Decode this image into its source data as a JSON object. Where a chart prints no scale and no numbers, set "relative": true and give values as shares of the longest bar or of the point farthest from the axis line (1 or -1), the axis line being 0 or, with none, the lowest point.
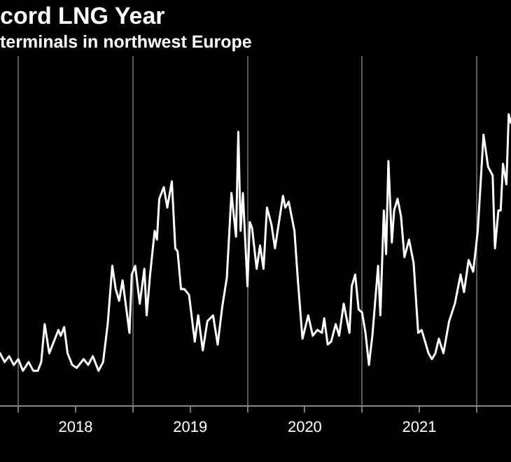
{
  "chart_data": {
    "type": "line",
    "title": "cord LNG Year",
    "subtitle": "terminals in northwest Europe",
    "relative": true,
    "grid": "x",
    "xlim": [
      2017.84,
      2022.3
    ],
    "xticks": [
      {
        "value": 2018,
        "label": null
      },
      {
        "value": 2018.5,
        "label": "2018"
      },
      {
        "value": 2019,
        "label": null
      },
      {
        "value": 2019.5,
        "label": "2019"
      },
      {
        "value": 2020,
        "label": null
      },
      {
        "value": 2020.5,
        "label": "2020"
      },
      {
        "value": 2021,
        "label": null
      },
      {
        "value": 2021.5,
        "label": "2021"
      },
      {
        "value": 2022,
        "label": null
      }
    ],
    "series": [
      {
        "color": "#ffffff",
        "x": [
          2017.84,
          2017.88,
          2017.92,
          2017.96,
          2018.0,
          2018.04,
          2018.09,
          2018.13,
          2018.17,
          2018.2,
          2018.23,
          2018.27,
          2018.31,
          2018.35,
          2018.37,
          2018.4,
          2018.43,
          2018.47,
          2018.51,
          2018.57,
          2018.61,
          2018.65,
          2018.7,
          2018.74,
          2018.78,
          2018.82,
          2018.85,
          2018.88,
          2018.91,
          2018.94,
          2018.97,
          2018.99,
          2019.02,
          2019.06,
          2019.1,
          2019.12,
          2019.15,
          2019.19,
          2019.21,
          2019.23,
          2019.27,
          2019.3,
          2019.34,
          2019.37,
          2019.39,
          2019.42,
          2019.45,
          2019.49,
          2019.54,
          2019.57,
          2019.61,
          2019.65,
          2019.7,
          2019.74,
          2019.78,
          2019.82,
          2019.86,
          2019.9,
          2019.92,
          2019.94,
          2019.96,
          2020.0,
          2020.02,
          2020.04,
          2020.08,
          2020.11,
          2020.14,
          2020.17,
          2020.21,
          2020.24,
          2020.31,
          2020.33,
          2020.36,
          2020.41,
          2020.44,
          2020.48,
          2020.53,
          2020.57,
          2020.61,
          2020.65,
          2020.67,
          2020.7,
          2020.73,
          2020.77,
          2020.8,
          2020.84,
          2020.89,
          2020.91,
          2020.94,
          2020.97,
          2021.0,
          2021.03,
          2021.06,
          2021.09,
          2021.14,
          2021.16,
          2021.19,
          2021.21,
          2021.23,
          2021.26,
          2021.28,
          2021.31,
          2021.34,
          2021.37,
          2021.41,
          2021.45,
          2021.49,
          2021.52,
          2021.55,
          2021.58,
          2021.61,
          2021.64,
          2021.67,
          2021.71,
          2021.76,
          2021.81,
          2021.86,
          2021.89,
          2021.93,
          2021.97,
          2022.01,
          2022.06,
          2022.1,
          2022.14,
          2022.16,
          2022.19,
          2022.21,
          2022.23,
          2022.26,
          2022.28,
          2022.3
        ],
        "values": [
          0.18,
          0.15,
          0.17,
          0.14,
          0.16,
          0.12,
          0.15,
          0.12,
          0.12,
          0.15,
          0.28,
          0.18,
          0.22,
          0.26,
          0.24,
          0.27,
          0.18,
          0.14,
          0.13,
          0.16,
          0.14,
          0.17,
          0.12,
          0.15,
          0.28,
          0.48,
          0.4,
          0.36,
          0.43,
          0.34,
          0.25,
          0.45,
          0.48,
          0.35,
          0.47,
          0.31,
          0.45,
          0.6,
          0.57,
          0.71,
          0.75,
          0.68,
          0.77,
          0.54,
          0.53,
          0.4,
          0.4,
          0.38,
          0.22,
          0.31,
          0.19,
          0.29,
          0.31,
          0.21,
          0.34,
          0.44,
          0.73,
          0.58,
          0.94,
          0.6,
          0.73,
          0.41,
          0.63,
          0.61,
          0.47,
          0.55,
          0.47,
          0.68,
          0.62,
          0.54,
          0.72,
          0.68,
          0.7,
          0.6,
          0.43,
          0.23,
          0.31,
          0.24,
          0.26,
          0.25,
          0.3,
          0.21,
          0.22,
          0.28,
          0.24,
          0.35,
          0.25,
          0.41,
          0.45,
          0.33,
          0.32,
          0.25,
          0.14,
          0.24,
          0.48,
          0.31,
          0.67,
          0.52,
          0.84,
          0.56,
          0.67,
          0.71,
          0.65,
          0.51,
          0.57,
          0.49,
          0.25,
          0.26,
          0.22,
          0.18,
          0.16,
          0.18,
          0.23,
          0.18,
          0.29,
          0.35,
          0.45,
          0.39,
          0.5,
          0.46,
          0.6,
          0.93,
          0.82,
          0.79,
          0.54,
          0.67,
          0.67,
          0.83,
          0.76,
          1.0,
          0.97
        ]
      }
    ]
  }
}
